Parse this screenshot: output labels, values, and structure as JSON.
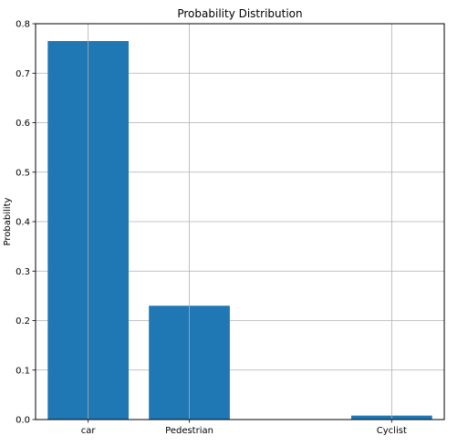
{
  "chart_data": {
    "type": "bar",
    "title": "Probability Distribution",
    "xlabel": "",
    "ylabel": "Probability",
    "categories": [
      "car",
      "Pedestrian",
      "",
      "Cyclist"
    ],
    "values": [
      0.765,
      0.23,
      0,
      0.008
    ],
    "ylim": [
      0,
      0.8
    ],
    "yticks": [
      "0.0",
      "0.1",
      "0.2",
      "0.3",
      "0.4",
      "0.5",
      "0.6",
      "0.7",
      "0.8"
    ],
    "grid": true,
    "bar_color": "#1f77b4",
    "grid_color": "#b0b0b0"
  }
}
